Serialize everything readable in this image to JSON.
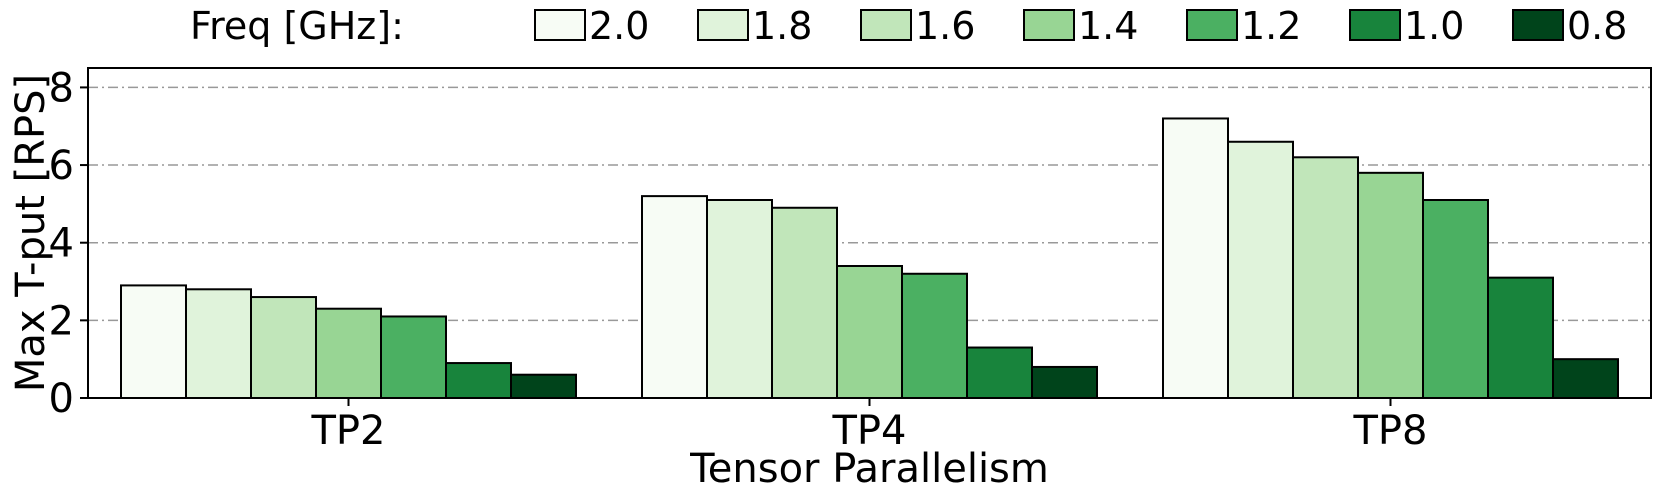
{
  "chart_data": {
    "type": "bar",
    "title": "",
    "xlabel": "Tensor Parallelism",
    "ylabel": "Max T-put [RPS]",
    "ylim": [
      0,
      8.5
    ],
    "yticks": [
      0,
      2,
      4,
      6,
      8
    ],
    "grid": {
      "axis": "y",
      "style": "dash-dot"
    },
    "categories": [
      "TP2",
      "TP4",
      "TP8"
    ],
    "legend": {
      "title": "Freq [GHz]:",
      "placement": "top"
    },
    "series": [
      {
        "name": "2.0",
        "color": "#f7fcf5",
        "values": [
          2.9,
          5.2,
          7.2
        ]
      },
      {
        "name": "1.8",
        "color": "#e0f3db",
        "values": [
          2.8,
          5.1,
          6.6
        ]
      },
      {
        "name": "1.6",
        "color": "#c1e6ba",
        "values": [
          2.6,
          4.9,
          6.2
        ]
      },
      {
        "name": "1.4",
        "color": "#98d594",
        "values": [
          2.3,
          3.4,
          5.8
        ]
      },
      {
        "name": "1.2",
        "color": "#4bb062",
        "values": [
          2.1,
          3.2,
          5.1
        ]
      },
      {
        "name": "1.0",
        "color": "#18843c",
        "values": [
          0.9,
          1.3,
          3.1
        ]
      },
      {
        "name": "0.8",
        "color": "#00441b",
        "values": [
          0.6,
          0.8,
          1.0
        ]
      }
    ]
  }
}
